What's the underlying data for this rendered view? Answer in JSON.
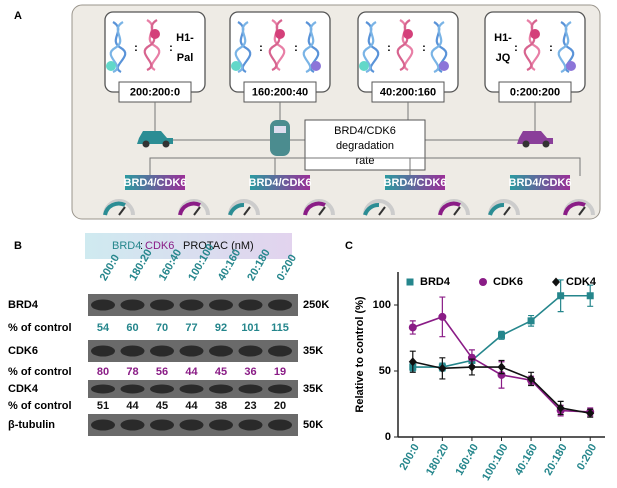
{
  "panel_a": {
    "label": "A",
    "colon": ":",
    "groups": [
      {
        "ratio": "200:200:0",
        "ligand": [
          "H1-",
          "Pal"
        ]
      },
      {
        "ratio": "160:200:40"
      },
      {
        "ratio": "40:200:160"
      },
      {
        "ratio": "0:200:200",
        "ligand": [
          "H1-",
          "JQ"
        ]
      }
    ],
    "center": [
      "BRD4/CDK6",
      "degradation",
      "rate"
    ],
    "badge": "BRD4/CDK6"
  },
  "panel_b": {
    "label": "B",
    "header": [
      "BRD4",
      ":",
      "CDK6",
      "PROTAC (nM)"
    ],
    "rows": [
      {
        "name": "BRD4",
        "size": "250K"
      },
      {
        "name": "% of control",
        "values": [
          54,
          60,
          70,
          77,
          92,
          101,
          115
        ],
        "color": "#25868c"
      },
      {
        "name": "CDK6",
        "size": "35K"
      },
      {
        "name": "% of control",
        "values": [
          80,
          78,
          56,
          44,
          45,
          36,
          19
        ],
        "color": "#8a1c86"
      },
      {
        "name": "CDK4",
        "size": "35K"
      },
      {
        "name": "% of control",
        "values": [
          51,
          44,
          45,
          44,
          38,
          23,
          20
        ],
        "color": "#111111"
      },
      {
        "name": "β-tubulin",
        "size": "50K"
      }
    ]
  },
  "panel_c": {
    "label": "C"
  },
  "chart_data": {
    "type": "line",
    "ylabel": "Relative to control (%)",
    "categories": [
      "200:0",
      "180:20",
      "160:40",
      "100:100",
      "40:160",
      "20:180",
      "0:200"
    ],
    "ylim": [
      0,
      125
    ],
    "yticks": [
      0,
      50,
      100
    ],
    "legend": "top",
    "series": [
      {
        "name": "BRD4",
        "color": "#25868c",
        "marker": "square",
        "values": [
          53,
          53,
          58,
          77,
          88,
          107,
          107
        ],
        "errors": [
          3,
          3,
          4,
          3,
          4,
          12,
          8
        ]
      },
      {
        "name": "CDK6",
        "color": "#8a1c86",
        "marker": "circle",
        "values": [
          83,
          91,
          60,
          47,
          43,
          20,
          19
        ],
        "errors": [
          5,
          15,
          6,
          10,
          3,
          4,
          3
        ]
      },
      {
        "name": "CDK4",
        "color": "#111111",
        "marker": "diamond",
        "values": [
          57,
          52,
          53,
          53,
          44,
          22,
          18
        ],
        "errors": [
          8,
          8,
          6,
          5,
          5,
          5,
          3
        ]
      }
    ]
  }
}
